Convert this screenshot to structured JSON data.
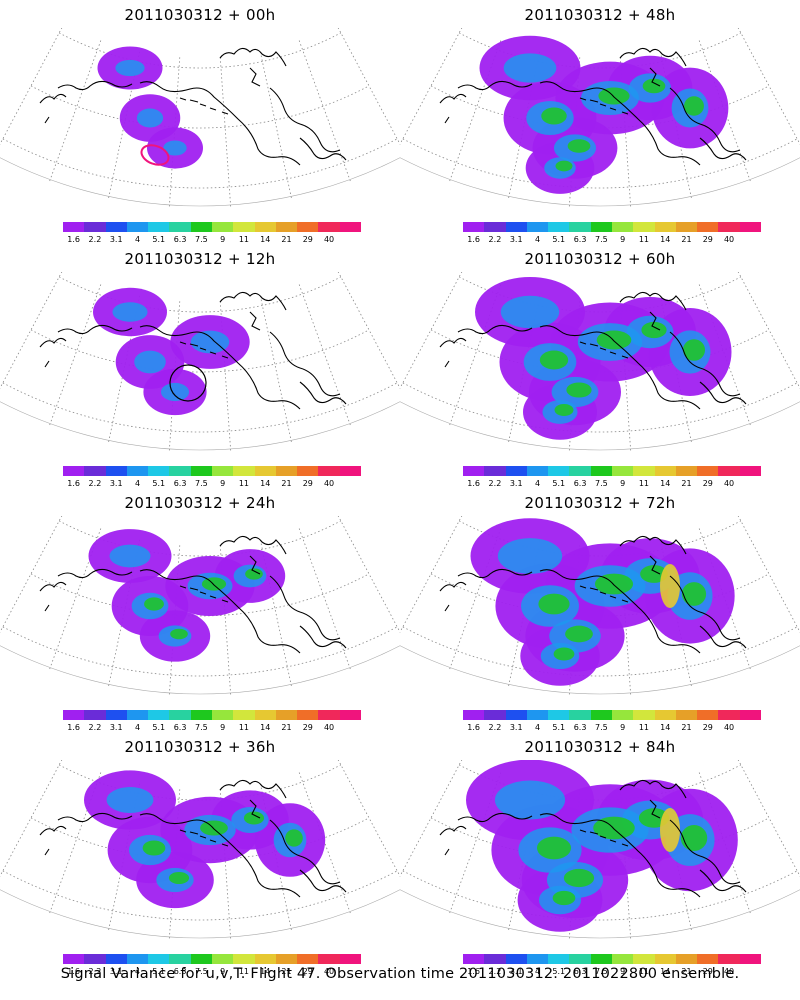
{
  "panels": [
    {
      "title": "2011030312 + 00h",
      "level": 0,
      "marker": "magenta"
    },
    {
      "title": "2011030312 + 48h",
      "level": 4,
      "marker": "none"
    },
    {
      "title": "2011030312 + 12h",
      "level": 1,
      "marker": "black"
    },
    {
      "title": "2011030312 + 60h",
      "level": 5,
      "marker": "none"
    },
    {
      "title": "2011030312 + 24h",
      "level": 2,
      "marker": "none"
    },
    {
      "title": "2011030312 + 72h",
      "level": 6,
      "marker": "none"
    },
    {
      "title": "2011030312 + 36h",
      "level": 3,
      "marker": "none"
    },
    {
      "title": "2011030312 + 84h",
      "level": 7,
      "marker": "none"
    }
  ],
  "colorbar": {
    "labels": [
      "1.6",
      "2.2",
      "3.1",
      "4",
      "5.1",
      "6.3",
      "7.5",
      "9",
      "11",
      "14",
      "21",
      "29",
      "40"
    ],
    "colors": [
      "#a020f0",
      "#6a2cd8",
      "#1e50f0",
      "#1e96f0",
      "#1ec8e6",
      "#28d2a0",
      "#1ec81e",
      "#96e63c",
      "#d2e63c",
      "#e6c832",
      "#e6a028",
      "#f06e28",
      "#f0285a",
      "#f0147d"
    ]
  },
  "footer": "Signal Variance for u,v,T. Flight 47. Observation time 2011030312. 2011022800 ensemble."
}
